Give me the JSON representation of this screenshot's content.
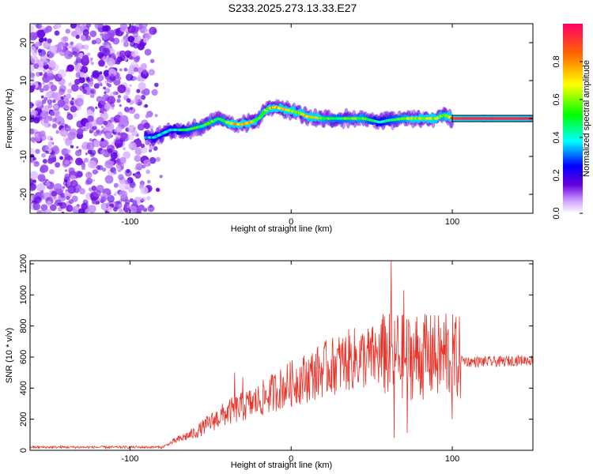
{
  "title": "S233.2025.273.13.33.E27",
  "chart_data": [
    {
      "type": "heatmap",
      "name": "spectrogram",
      "xlabel": "Height of straight line (km)",
      "ylabel": "Frequency (Hz)",
      "xlim": [
        -162,
        150
      ],
      "ylim": [
        -25,
        25
      ],
      "xticks": [
        -100,
        0,
        100
      ],
      "xtick_labels": [
        "-100",
        "0",
        "100"
      ],
      "yticks": [
        -20,
        -10,
        0,
        10,
        20
      ],
      "ytick_labels": [
        "-20",
        "-10",
        "0",
        "10",
        "20"
      ],
      "colorbar": {
        "label": "Normalized spectral amplitude",
        "range": [
          0,
          1
        ],
        "ticks": [
          0,
          0.2,
          0.4,
          0.6,
          0.8
        ],
        "tick_labels": [
          "0.0",
          "0.2",
          "0.4",
          "0.6",
          "0.8"
        ]
      },
      "noise_region_x": [
        -162,
        -87
      ],
      "ridge": {
        "x": [
          -90,
          -85,
          -80,
          -75,
          -70,
          -65,
          -60,
          -55,
          -50,
          -45,
          -40,
          -35,
          -30,
          -25,
          -20,
          -15,
          -10,
          -5,
          0,
          5,
          10,
          20,
          30,
          40,
          45,
          50,
          55,
          60,
          70,
          80,
          90,
          95,
          100,
          110,
          120,
          130,
          140,
          150
        ],
        "freq": [
          -5,
          -5,
          -4,
          -3,
          -3,
          -3,
          -2.5,
          -2,
          -1,
          0,
          -1,
          -1.5,
          -1.5,
          -1,
          0,
          2.5,
          3,
          2.5,
          2,
          1.5,
          0.5,
          0,
          0,
          0,
          0,
          -0.5,
          -1,
          -0.5,
          0,
          0,
          0,
          1,
          0,
          0,
          0,
          0,
          0,
          0
        ],
        "amplitude": [
          0.35,
          0.4,
          0.42,
          0.38,
          0.45,
          0.5,
          0.55,
          0.55,
          0.6,
          0.55,
          0.6,
          0.75,
          0.85,
          0.8,
          0.55,
          0.7,
          0.8,
          0.75,
          0.7,
          0.65,
          0.85,
          0.6,
          0.55,
          0.6,
          0.6,
          0.5,
          0.45,
          0.5,
          0.6,
          0.7,
          0.65,
          0.6,
          0.9,
          0.95,
          0.95,
          0.95,
          0.95,
          0.95
        ]
      }
    },
    {
      "type": "line",
      "name": "snr",
      "xlabel": "Height of straight line (km)",
      "ylabel": "SNR (10 * v/v)",
      "xlim": [
        -162,
        150
      ],
      "ylim": [
        0,
        1220
      ],
      "xticks": [
        -100,
        0,
        100
      ],
      "xtick_labels": [
        "-100",
        "0",
        "100"
      ],
      "yticks": [
        0,
        200,
        400,
        600,
        800,
        1000,
        1200
      ],
      "ytick_labels": [
        "0",
        "200",
        "400",
        "600",
        "800",
        "1000",
        "1200"
      ],
      "color": "#e8332a",
      "trend": {
        "x": [
          -162,
          -80,
          -70,
          -60,
          -50,
          -40,
          -30,
          -20,
          -10,
          0,
          10,
          20,
          30,
          40,
          50,
          60,
          70,
          80,
          90,
          100,
          110,
          120,
          130,
          140,
          150
        ],
        "y": [
          20,
          20,
          70,
          110,
          180,
          240,
          280,
          320,
          380,
          430,
          470,
          520,
          560,
          590,
          600,
          610,
          600,
          600,
          600,
          600,
          570,
          570,
          570,
          580,
          580
        ]
      },
      "spikes": [
        {
          "x": -35,
          "y": 500
        },
        {
          "x": -30,
          "y": 470
        },
        {
          "x": 58,
          "y": 860
        },
        {
          "x": 62,
          "y": 1220
        },
        {
          "x": 64,
          "y": 80
        },
        {
          "x": 66,
          "y": 870
        },
        {
          "x": 70,
          "y": 1030
        },
        {
          "x": 72,
          "y": 110
        },
        {
          "x": 78,
          "y": 860
        },
        {
          "x": 84,
          "y": 870
        },
        {
          "x": 88,
          "y": 790
        },
        {
          "x": 96,
          "y": 880
        },
        {
          "x": 100,
          "y": 200
        }
      ]
    }
  ]
}
